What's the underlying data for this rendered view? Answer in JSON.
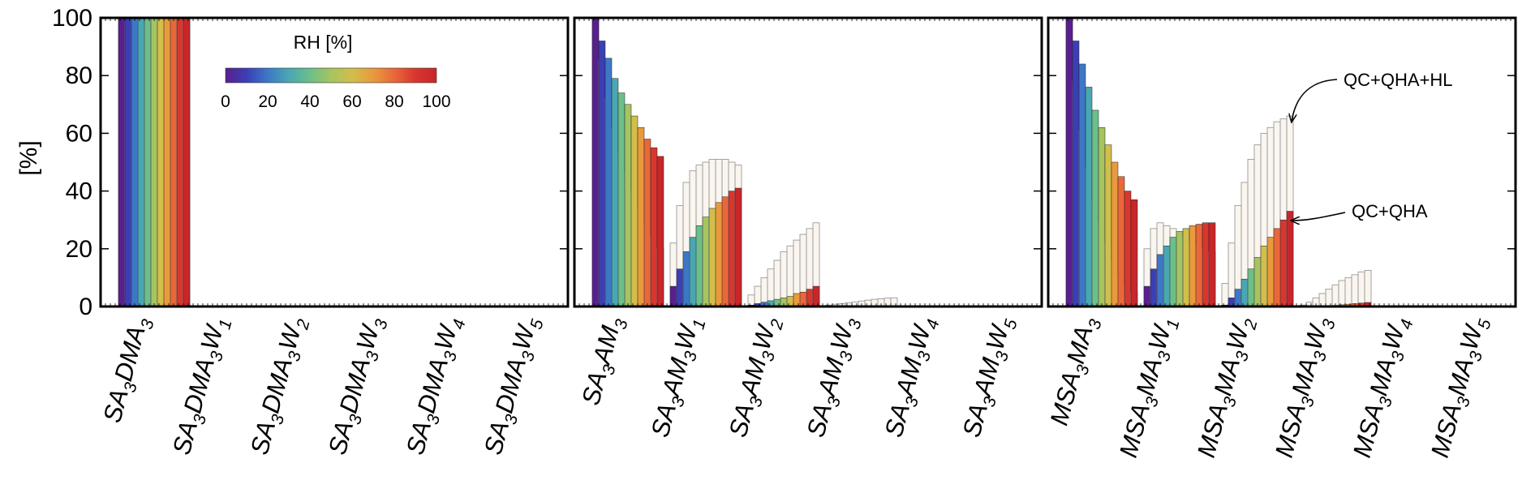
{
  "chart_data": {
    "type": "bar",
    "ylabel": "[%]",
    "ylim": [
      0,
      100
    ],
    "yticks": [
      "0",
      "20",
      "40",
      "60",
      "80",
      "100"
    ],
    "rh_levels": [
      0,
      10,
      20,
      30,
      40,
      50,
      60,
      70,
      80,
      90,
      100
    ],
    "colorbar": {
      "title": "RH [%]",
      "ticks": [
        "0",
        "20",
        "40",
        "60",
        "80",
        "100"
      ],
      "colors": [
        "#5a1f8f",
        "#3b3fb5",
        "#3d78c6",
        "#4aa6b3",
        "#6cbf8a",
        "#a6c45f",
        "#d2be4a",
        "#e89a3d",
        "#e8683a",
        "#d8362f",
        "#c9262a"
      ]
    },
    "annotations": {
      "upper": "QC+QHA+HL",
      "lower": "QC+QHA"
    },
    "panels": [
      {
        "categories": [
          {
            "base": "SA",
            "s1": "3",
            "mid": "DMA",
            "s2": "3",
            "w": "",
            "s3": ""
          },
          {
            "base": "SA",
            "s1": "3",
            "mid": "DMA",
            "s2": "3",
            "w": "W",
            "s3": "1"
          },
          {
            "base": "SA",
            "s1": "3",
            "mid": "DMA",
            "s2": "3",
            "w": "W",
            "s3": "2"
          },
          {
            "base": "SA",
            "s1": "3",
            "mid": "DMA",
            "s2": "3",
            "w": "W",
            "s3": "3"
          },
          {
            "base": "SA",
            "s1": "3",
            "mid": "DMA",
            "s2": "3",
            "w": "W",
            "s3": "4"
          },
          {
            "base": "SA",
            "s1": "3",
            "mid": "DMA",
            "s2": "3",
            "w": "W",
            "s3": "5"
          }
        ],
        "series": [
          {
            "name": "QC+QHA",
            "values": [
              [
                100,
                100,
                100,
                100,
                100,
                100,
                100,
                100,
                100,
                100,
                100
              ],
              [
                0,
                0,
                0,
                0,
                0,
                0,
                0,
                0,
                0,
                0,
                0
              ],
              [
                0,
                0,
                0,
                0,
                0,
                0,
                0,
                0,
                0,
                0,
                0
              ],
              [
                0,
                0,
                0,
                0,
                0,
                0,
                0,
                0,
                0,
                0,
                0
              ],
              [
                0,
                0,
                0,
                0,
                0,
                0,
                0,
                0,
                0,
                0,
                0
              ],
              [
                0,
                0,
                0,
                0,
                0,
                0,
                0,
                0,
                0,
                0,
                0
              ]
            ]
          },
          {
            "name": "QC+QHA+HL",
            "values": [
              [
                100,
                100,
                100,
                100,
                100,
                100,
                100,
                100,
                100,
                100,
                100
              ],
              [
                0,
                0,
                0,
                0,
                0,
                0,
                0,
                0,
                0,
                0,
                0
              ],
              [
                0,
                0,
                0,
                0,
                0,
                0,
                0,
                0,
                0,
                0,
                0
              ],
              [
                0,
                0,
                0,
                0,
                0,
                0,
                0,
                0,
                0,
                0,
                0
              ],
              [
                0,
                0,
                0,
                0,
                0,
                0,
                0,
                0,
                0,
                0,
                0
              ],
              [
                0,
                0,
                0,
                0,
                0,
                0,
                0,
                0,
                0,
                0,
                0
              ]
            ]
          }
        ]
      },
      {
        "categories": [
          {
            "base": "SA",
            "s1": "3",
            "mid": "AM",
            "s2": "3",
            "w": "",
            "s3": ""
          },
          {
            "base": "SA",
            "s1": "3",
            "mid": "AM",
            "s2": "3",
            "w": "W",
            "s3": "1"
          },
          {
            "base": "SA",
            "s1": "3",
            "mid": "AM",
            "s2": "3",
            "w": "W",
            "s3": "2"
          },
          {
            "base": "SA",
            "s1": "3",
            "mid": "AM",
            "s2": "3",
            "w": "W",
            "s3": "3"
          },
          {
            "base": "SA",
            "s1": "3",
            "mid": "AM",
            "s2": "3",
            "w": "W",
            "s3": "4"
          },
          {
            "base": "SA",
            "s1": "3",
            "mid": "AM",
            "s2": "3",
            "w": "W",
            "s3": "5"
          }
        ],
        "series": [
          {
            "name": "QC+QHA",
            "values": [
              [
                100,
                92,
                86,
                79,
                74,
                70,
                66,
                62,
                58,
                55,
                52
              ],
              [
                7,
                13,
                19,
                24,
                28,
                31,
                34,
                36,
                38,
                40,
                41
              ],
              [
                0.5,
                1,
                1.5,
                2,
                2.5,
                3,
                3.5,
                4.5,
                5,
                6,
                7
              ],
              [
                0,
                0,
                0,
                0,
                0,
                0.1,
                0.1,
                0.1,
                0.2,
                0.2,
                0.3
              ],
              [
                0,
                0,
                0,
                0,
                0,
                0,
                0,
                0,
                0,
                0,
                0
              ],
              [
                0,
                0,
                0,
                0,
                0,
                0,
                0,
                0,
                0,
                0,
                0
              ]
            ]
          },
          {
            "name": "QC+QHA+HL",
            "values": [
              [
                100,
                85,
                72,
                62,
                53,
                46,
                40,
                34,
                29,
                24,
                20
              ],
              [
                22,
                35,
                43,
                47,
                49,
                50,
                51,
                51,
                51,
                50,
                49
              ],
              [
                4,
                7,
                10,
                13,
                16,
                19,
                21,
                23,
                25,
                27,
                29
              ],
              [
                0.5,
                0.8,
                1,
                1.3,
                1.6,
                1.9,
                2.2,
                2.5,
                2.7,
                2.9,
                3
              ],
              [
                0,
                0,
                0,
                0,
                0,
                0,
                0,
                0,
                0,
                0,
                0
              ],
              [
                0,
                0,
                0,
                0,
                0,
                0,
                0,
                0,
                0,
                0,
                0
              ]
            ]
          }
        ]
      },
      {
        "categories": [
          {
            "base": "MSA",
            "s1": "3",
            "mid": "MA",
            "s2": "3",
            "w": "",
            "s3": ""
          },
          {
            "base": "MSA",
            "s1": "3",
            "mid": "MA",
            "s2": "3",
            "w": "W",
            "s3": "1"
          },
          {
            "base": "MSA",
            "s1": "3",
            "mid": "MA",
            "s2": "3",
            "w": "W",
            "s3": "2"
          },
          {
            "base": "MSA",
            "s1": "3",
            "mid": "MA",
            "s2": "3",
            "w": "W",
            "s3": "3"
          },
          {
            "base": "MSA",
            "s1": "3",
            "mid": "MA",
            "s2": "3",
            "w": "W",
            "s3": "4"
          },
          {
            "base": "MSA",
            "s1": "3",
            "mid": "MA",
            "s2": "3",
            "w": "W",
            "s3": "5"
          }
        ],
        "series": [
          {
            "name": "QC+QHA",
            "values": [
              [
                100,
                92,
                84,
                76,
                68,
                62,
                56,
                50,
                45,
                40,
                37
              ],
              [
                7,
                13,
                18,
                21,
                24,
                26,
                27,
                28,
                28.5,
                29,
                29
              ],
              [
                0.5,
                3,
                6,
                9.5,
                13,
                17,
                21,
                24,
                27,
                30,
                33
              ],
              [
                0,
                0,
                0,
                0,
                0.2,
                0.4,
                0.6,
                0.8,
                1,
                1.2,
                1.4
              ],
              [
                0,
                0,
                0,
                0,
                0,
                0,
                0,
                0,
                0,
                0,
                0
              ],
              [
                0,
                0,
                0,
                0,
                0,
                0,
                0,
                0,
                0,
                0,
                0
              ]
            ]
          },
          {
            "name": "QC+QHA+HL",
            "values": [
              [
                100,
                78,
                61,
                48,
                37,
                29,
                22,
                16,
                11,
                7,
                5
              ],
              [
                20,
                27,
                29,
                28,
                27,
                25,
                24,
                22,
                21,
                20,
                19
              ],
              [
                8,
                22,
                35,
                43,
                51,
                56,
                60,
                62,
                64,
                65,
                66
              ],
              [
                0.5,
                1.5,
                3,
                4.5,
                6,
                7.5,
                9,
                10,
                11,
                12,
                12.5
              ],
              [
                0,
                0,
                0,
                0,
                0,
                0,
                0,
                0,
                0,
                0,
                0
              ],
              [
                0,
                0,
                0,
                0,
                0,
                0,
                0,
                0,
                0,
                0,
                0
              ]
            ]
          }
        ]
      }
    ]
  }
}
